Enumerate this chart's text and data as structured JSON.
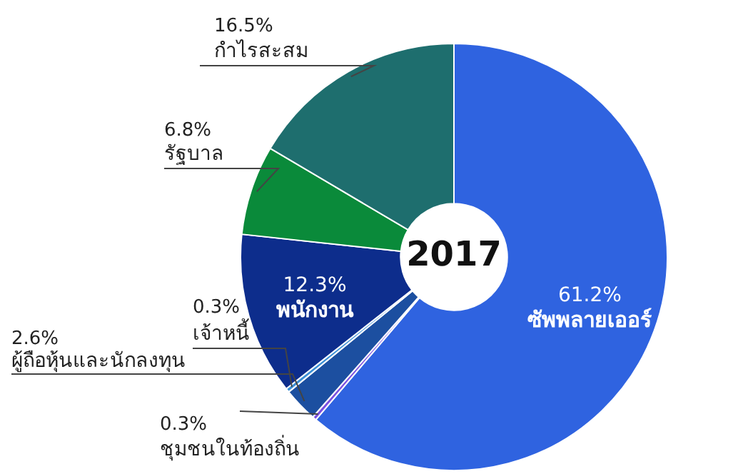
{
  "chart_data": {
    "type": "donut",
    "title": "2017",
    "categories": [
      "ซัพพลายเออร์",
      "ชุมชนในท้องถิ่น",
      "ผู้ถือหุ้นและนักลงทุน",
      "เจ้าหนี้",
      "พนักงาน",
      "รัฐบาล",
      "กำไรสะสม"
    ],
    "values": [
      61.2,
      0.3,
      2.6,
      0.3,
      12.3,
      6.8,
      16.5
    ],
    "colors": [
      "#2f63e0",
      "#7b4fe0",
      "#1c4fa0",
      "#3b8fd6",
      "#0d2d8c",
      "#0a8a3a",
      "#1e6e6e"
    ],
    "value_labels": [
      "61.2%",
      "0.3%",
      "2.6%",
      "0.3%",
      "12.3%",
      "6.8%",
      "16.5%"
    ]
  }
}
